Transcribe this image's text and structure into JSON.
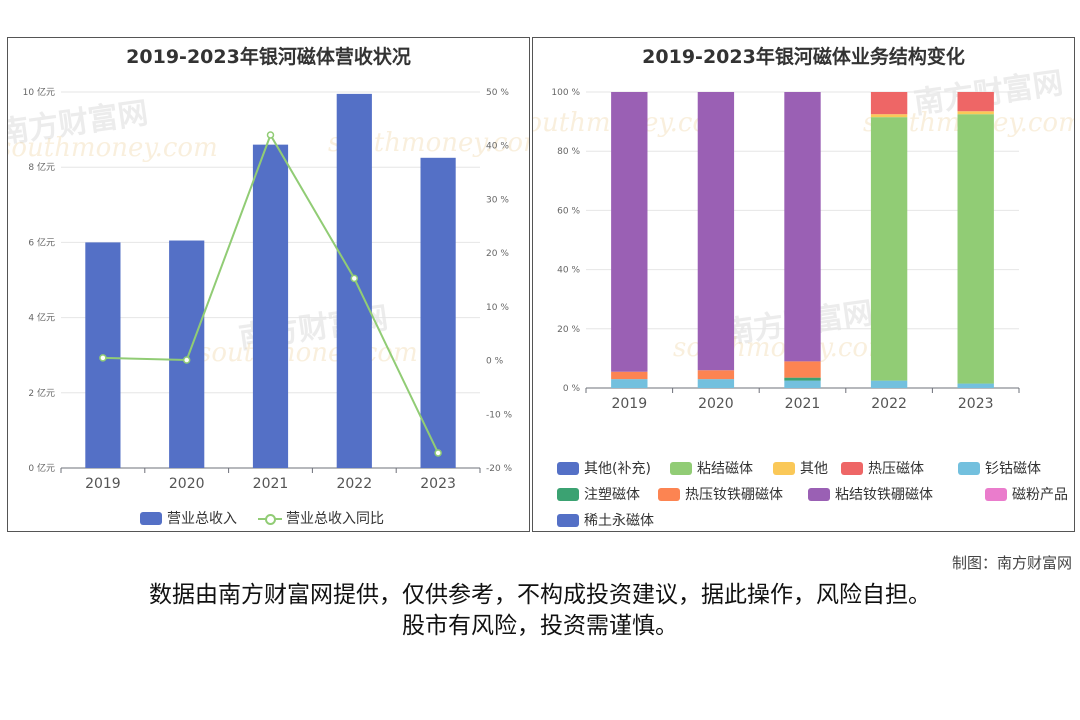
{
  "watermark": {
    "brand": "南方财富网",
    "site": "southmoney.com"
  },
  "credit": "制图：南方财富网",
  "disclaimer": {
    "line1": "数据由南方财富网提供，仅供参考，不构成投资建议，据此操作，风险自担。",
    "line2": "股市有风险，投资需谨慎。"
  },
  "chart_data": [
    {
      "type": "bar",
      "title": "2019-2023年银河磁体营收状况",
      "categories": [
        "2019",
        "2020",
        "2021",
        "2022",
        "2023"
      ],
      "y_left": {
        "ticks": [
          "0 亿元",
          "2 亿元",
          "4 亿元",
          "6 亿元",
          "8 亿元",
          "10 亿元"
        ],
        "ylim": [
          0,
          10
        ]
      },
      "y_right": {
        "ticks": [
          "-20 %",
          "-10 %",
          "0 %",
          "10 %",
          "20 %",
          "30 %",
          "40 %",
          "50 %"
        ],
        "ylim": [
          -20,
          50
        ]
      },
      "series": [
        {
          "name": "营业总收入",
          "type": "bar",
          "axis": "left",
          "color": "#5470c6",
          "values": [
            6.0,
            6.05,
            8.6,
            9.95,
            8.25
          ]
        },
        {
          "name": "营业总收入同比",
          "type": "line",
          "axis": "right",
          "color": "#91cc75",
          "values": [
            0.5,
            0.1,
            42.0,
            15.3,
            -17.2
          ]
        }
      ],
      "legend_position": "bottom-center",
      "grid": true
    },
    {
      "type": "bar",
      "stacked": true,
      "title": "2019-2023年银河磁体业务结构变化",
      "categories": [
        "2019",
        "2020",
        "2021",
        "2022",
        "2023"
      ],
      "y_axis": {
        "ticks": [
          "0 %",
          "20 %",
          "40 %",
          "60 %",
          "80 %",
          "100 %"
        ],
        "ylim": [
          0,
          100
        ]
      },
      "series": [
        {
          "name": "其他(补充)",
          "color": "#5470c6",
          "values": [
            0,
            0,
            0,
            0,
            0
          ]
        },
        {
          "name": "粘结磁体",
          "color": "#91cc75",
          "values": [
            0,
            0,
            0,
            89,
            91
          ]
        },
        {
          "name": "其他",
          "color": "#fac858",
          "values": [
            0,
            0,
            0,
            1,
            1
          ]
        },
        {
          "name": "热压磁体",
          "color": "#ee6666",
          "values": [
            0,
            0,
            0,
            7.5,
            6.5
          ]
        },
        {
          "name": "钐钴磁体",
          "color": "#73c0de",
          "values": [
            3,
            3,
            2.5,
            2.5,
            1.5
          ]
        },
        {
          "name": "注塑磁体",
          "color": "#3ba272",
          "values": [
            0,
            0,
            1,
            0,
            0
          ]
        },
        {
          "name": "热压钕铁硼磁体",
          "color": "#fc8452",
          "values": [
            2.5,
            3,
            5.5,
            0,
            0
          ]
        },
        {
          "name": "粘结钕铁硼磁体",
          "color": "#9a60b4",
          "values": [
            94.5,
            94,
            91,
            0,
            0
          ]
        },
        {
          "name": "磁粉产品",
          "color": "#ea7ccc",
          "values": [
            0,
            0,
            0,
            0,
            0
          ]
        },
        {
          "name": "稀土永磁体",
          "color": "#5470c6",
          "values": [
            0,
            0,
            0,
            0,
            0
          ]
        }
      ],
      "legend_position": "bottom",
      "grid": true
    }
  ]
}
